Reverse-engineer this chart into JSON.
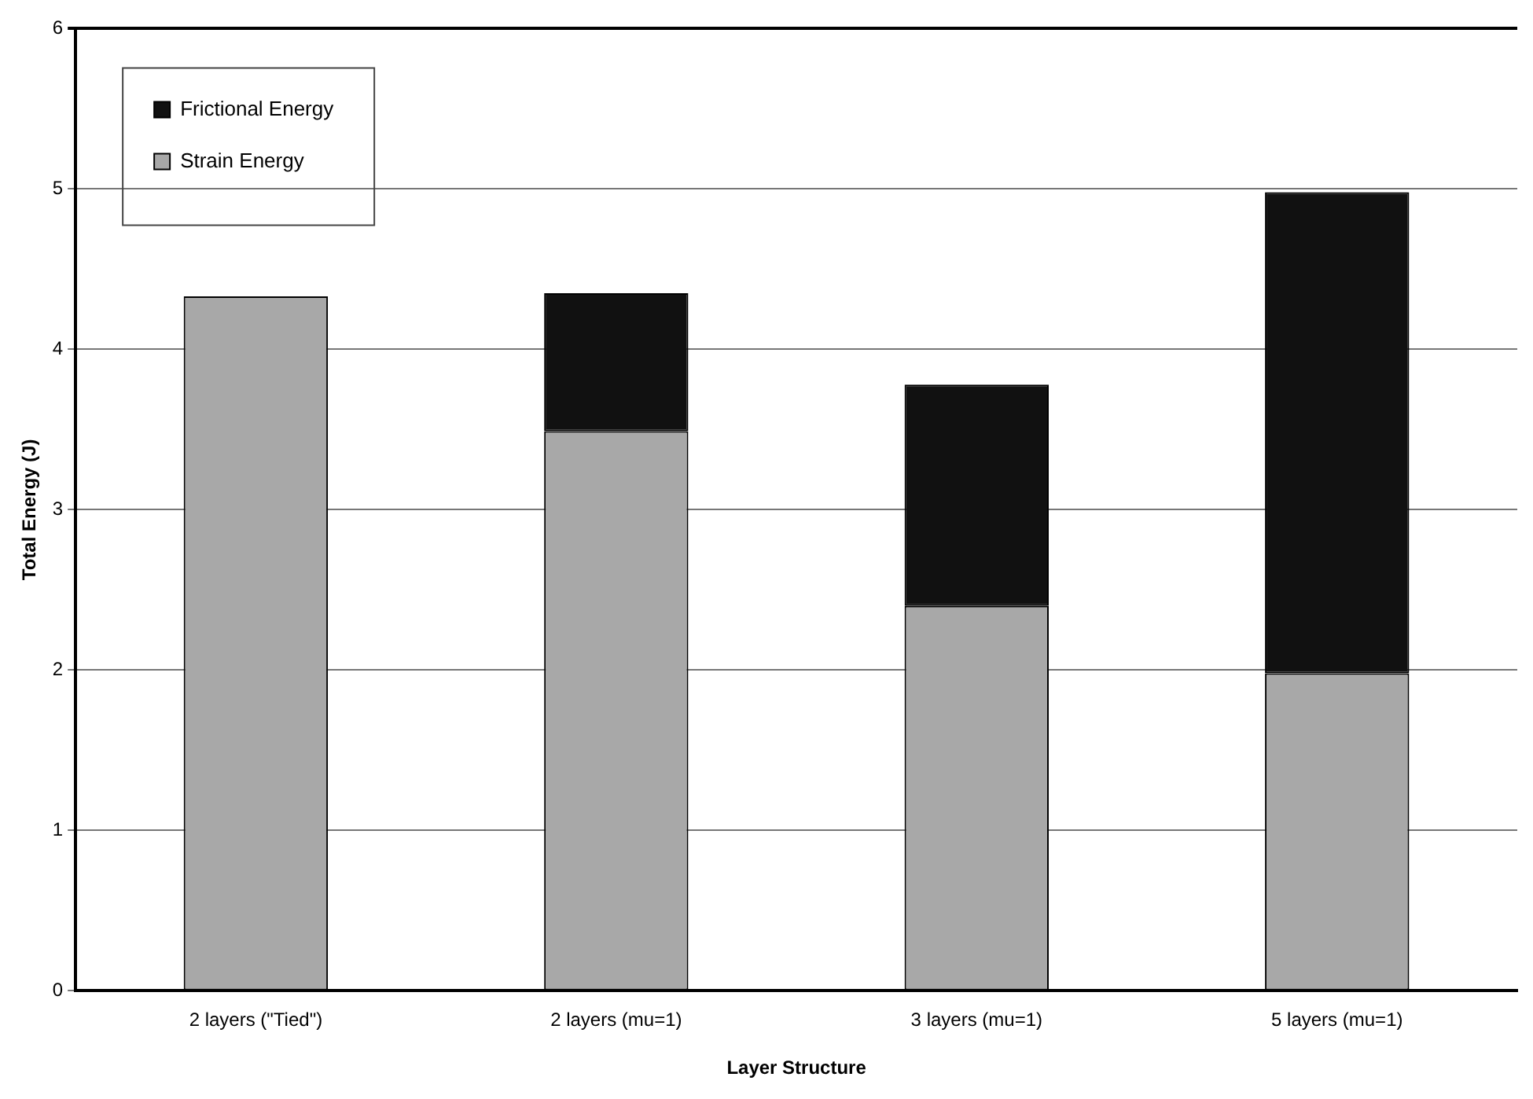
{
  "chart_data": {
    "type": "bar",
    "xlabel": "Layer Structure",
    "ylabel": "Total Energy (J)",
    "categories": [
      "2 layers (\"Tied\")",
      "2 layers (mu=1)",
      "3 layers (mu=1)",
      "5 layers (mu=1)"
    ],
    "stacked": true,
    "series": [
      {
        "name": "Strain Energy",
        "color": "#a8a8a8",
        "values": [
          4.33,
          3.49,
          2.4,
          1.98
        ]
      },
      {
        "name": "Frictional Energy",
        "color": "#111111",
        "values": [
          0,
          0.86,
          1.38,
          3.0
        ]
      }
    ],
    "ylim": [
      0,
      6
    ],
    "yticks": [
      0,
      1,
      2,
      3,
      4,
      5,
      6
    ],
    "grid": "y",
    "legend": "top left"
  }
}
